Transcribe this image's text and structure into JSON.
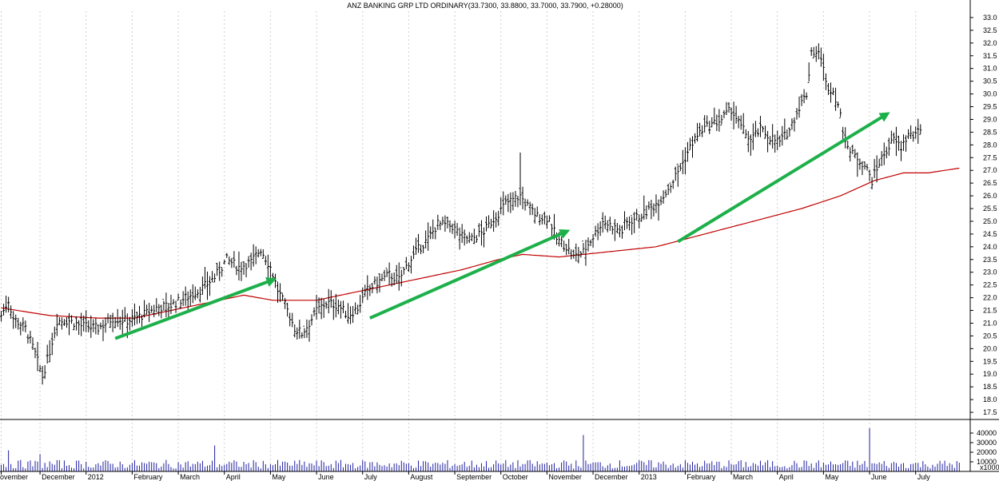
{
  "chart_data": {
    "type": "line",
    "title": "ANZ BANKING GRP LTD  ORDINARY(33.7300, 33.8800, 33.7000, 33.7900, +0.28000)",
    "price_axis": {
      "ylim": [
        17.25,
        33.25
      ],
      "ticks": [
        "17.5",
        "18.0",
        "18.5",
        "19.0",
        "19.5",
        "20.0",
        "20.5",
        "21.0",
        "21.5",
        "22.0",
        "22.5",
        "23.0",
        "23.5",
        "24.0",
        "24.5",
        "25.0",
        "25.5",
        "26.0",
        "26.5",
        "27.0",
        "27.5",
        "28.0",
        "28.5",
        "29.0",
        "29.5",
        "30.0",
        "30.5",
        "31.0",
        "31.5",
        "32.0",
        "32.5",
        "33.0"
      ]
    },
    "volume_axis": {
      "ylim": [
        0,
        50000
      ],
      "ticks": [
        "40000",
        "30000",
        "20000",
        "10000"
      ],
      "unit_label": "x1000"
    },
    "x_labels": [
      "ovember",
      "December",
      "2012",
      "February",
      "March",
      "April",
      "May",
      "June",
      "July",
      "August",
      "September",
      "October",
      "November",
      "December",
      "2013",
      "February",
      "March",
      "April",
      "May",
      "June",
      "July"
    ],
    "x_label_index": [
      0,
      11,
      24,
      37,
      50,
      63,
      76,
      89,
      102,
      115,
      128,
      141,
      154,
      167,
      180,
      193,
      206,
      219,
      232,
      245,
      258
    ],
    "total_points": 260,
    "price_anchors": [
      [
        0,
        21.3
      ],
      [
        3,
        21.9
      ],
      [
        5,
        21.2
      ],
      [
        10,
        20.8
      ],
      [
        14,
        19.8
      ],
      [
        17,
        18.9
      ],
      [
        20,
        19.9
      ],
      [
        23,
        21.1
      ],
      [
        28,
        21.1
      ],
      [
        33,
        20.9
      ],
      [
        40,
        20.8
      ],
      [
        46,
        21.2
      ],
      [
        52,
        21.1
      ],
      [
        58,
        21.3
      ],
      [
        64,
        21.6
      ],
      [
        70,
        21.7
      ],
      [
        76,
        22.0
      ],
      [
        82,
        22.3
      ],
      [
        88,
        22.8
      ],
      [
        93,
        23.5
      ],
      [
        98,
        23.2
      ],
      [
        103,
        23.4
      ],
      [
        107,
        23.9
      ],
      [
        111,
        23.2
      ],
      [
        114,
        22.3
      ],
      [
        118,
        21.5
      ],
      [
        121,
        20.8
      ],
      [
        124,
        20.6
      ],
      [
        127,
        21.0
      ],
      [
        130,
        21.5
      ],
      [
        134,
        21.8
      ],
      [
        139,
        21.7
      ],
      [
        143,
        21.3
      ],
      [
        147,
        21.6
      ],
      [
        151,
        22.3
      ],
      [
        155,
        22.6
      ],
      [
        160,
        22.9
      ],
      [
        164,
        22.7
      ],
      [
        168,
        23.4
      ],
      [
        172,
        23.9
      ],
      [
        176,
        24.3
      ],
      [
        180,
        24.9
      ],
      [
        186,
        24.8
      ],
      [
        190,
        24.4
      ],
      [
        194,
        24.3
      ],
      [
        199,
        24.6
      ],
      [
        204,
        25.2
      ],
      [
        208,
        25.7
      ],
      [
        212,
        25.9
      ],
      [
        214,
        26.0
      ],
      [
        217,
        25.6
      ],
      [
        221,
        25.2
      ],
      [
        226,
        25.1
      ],
      [
        229,
        24.3
      ],
      [
        233,
        24.0
      ],
      [
        236,
        23.6
      ],
      [
        240,
        23.8
      ],
      [
        244,
        24.4
      ],
      [
        248,
        25.0
      ],
      [
        252,
        24.8
      ],
      [
        256,
        24.6
      ]
    ],
    "price_anchors_2": [
      [
        0,
        24.9
      ],
      [
        4,
        25.1
      ],
      [
        8,
        25.3
      ],
      [
        12,
        25.6
      ],
      [
        16,
        26.0
      ],
      [
        20,
        26.6
      ],
      [
        24,
        27.3
      ],
      [
        28,
        28.1
      ],
      [
        32,
        28.6
      ],
      [
        36,
        28.8
      ],
      [
        40,
        29.0
      ],
      [
        44,
        29.4
      ],
      [
        48,
        28.7
      ],
      [
        52,
        28.2
      ],
      [
        56,
        28.6
      ],
      [
        60,
        28.3
      ],
      [
        64,
        28.1
      ],
      [
        68,
        28.6
      ],
      [
        72,
        29.5
      ],
      [
        75,
        30.0
      ],
      [
        77,
        31.7
      ],
      [
        81,
        31.5
      ],
      [
        83,
        30.4
      ],
      [
        86,
        30.1
      ],
      [
        88,
        29.6
      ],
      [
        90,
        28.6
      ],
      [
        93,
        27.7
      ],
      [
        96,
        27.5
      ],
      [
        99,
        27.2
      ],
      [
        102,
        26.6
      ],
      [
        105,
        27.3
      ],
      [
        108,
        27.8
      ],
      [
        111,
        28.2
      ],
      [
        114,
        27.9
      ],
      [
        117,
        28.4
      ],
      [
        120,
        28.3
      ],
      [
        122,
        28.7
      ]
    ],
    "series": [
      {
        "name": "",
        "color": "#000000",
        "style": "OHLC bars"
      },
      {
        "name": "",
        "color": "#c00000",
        "style": "moving average line"
      }
    ],
    "ma_anchors": [
      [
        0,
        21.6
      ],
      [
        20,
        21.3
      ],
      [
        40,
        21.2
      ],
      [
        55,
        21.2
      ],
      [
        70,
        21.5
      ],
      [
        85,
        21.8
      ],
      [
        100,
        22.1
      ],
      [
        112,
        21.9
      ],
      [
        130,
        21.9
      ],
      [
        150,
        22.3
      ],
      [
        170,
        22.7
      ],
      [
        190,
        23.1
      ],
      [
        205,
        23.5
      ],
      [
        215,
        23.7
      ],
      [
        230,
        23.6
      ],
      [
        250,
        23.8
      ],
      [
        270,
        24.0
      ],
      [
        290,
        24.5
      ],
      [
        310,
        25.0
      ],
      [
        330,
        25.5
      ],
      [
        346,
        26.0
      ],
      [
        360,
        26.6
      ],
      [
        372,
        26.9
      ],
      [
        382,
        26.9
      ],
      [
        396,
        27.1
      ]
    ],
    "arrows": [
      {
        "from": [
          47,
          20.4
        ],
        "to": [
          112,
          22.7
        ]
      },
      {
        "from": [
          152,
          21.2
        ],
        "to": [
          233,
          24.6
        ]
      },
      {
        "from": [
          279,
          24.2
        ],
        "to": [
          365,
          29.2
        ]
      }
    ],
    "volume_spikes": [
      {
        "i": 3,
        "v": 22000
      },
      {
        "i": 16,
        "v": 18000
      },
      {
        "i": 88,
        "v": 27000
      },
      {
        "i": 240,
        "v": 38000
      },
      {
        "i": 358,
        "v": 45000
      }
    ],
    "colors": {
      "price_bars": "#000000",
      "moving_average": "#c00000",
      "arrows": "#1db04a",
      "volume_bars": "#2020a0",
      "grid": "#cfcfcf",
      "axis": "#000000"
    }
  }
}
